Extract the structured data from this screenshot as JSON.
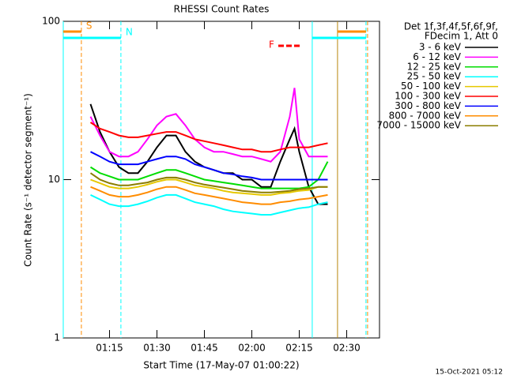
{
  "chart_data": {
    "type": "line",
    "title": "RHESSI Count Rates",
    "xlabel": "Start Time (17-May-07 01:00:22)",
    "ylabel": "Count Rate (s⁻¹ detector segment⁻¹)",
    "footer": "15-Oct-2021 05:12",
    "legend_header": [
      "Det 1f,3f,4f,5f,6f,9f,",
      "FDecim 1, Att 0"
    ],
    "log_y": true,
    "xlim": [
      0.37,
      100.37
    ],
    "ylim": [
      1,
      100
    ],
    "yticks": [
      1,
      10,
      100
    ],
    "xticks": [
      {
        "value": 15,
        "label": "01:15"
      },
      {
        "value": 30,
        "label": "01:30"
      },
      {
        "value": 45,
        "label": "01:45"
      },
      {
        "value": 60,
        "label": "02:00"
      },
      {
        "value": 75,
        "label": "02:15"
      },
      {
        "value": 90,
        "label": "02:30"
      }
    ],
    "x": [
      9,
      12,
      15,
      18,
      21,
      24,
      27,
      30,
      33,
      36,
      39,
      42,
      45,
      48,
      51,
      54,
      57,
      60,
      63,
      66,
      69,
      72,
      73.5,
      75,
      78,
      81,
      84
    ],
    "series": [
      {
        "name": "3 - 6 keV",
        "color": "#000000",
        "values": [
          30,
          20,
          15,
          12,
          11,
          11,
          13,
          16,
          19,
          19,
          15,
          13,
          12,
          11.5,
          11,
          11,
          10,
          10,
          9,
          9,
          13,
          18,
          21,
          15,
          9,
          7,
          7
        ]
      },
      {
        "name": "6 - 12 keV",
        "color": "#ff00ff",
        "values": [
          25,
          19,
          15,
          14,
          14,
          15,
          18,
          22,
          25,
          26,
          22,
          18,
          16,
          15,
          15,
          14.5,
          14,
          14,
          13.5,
          13,
          15,
          25,
          38,
          18,
          14,
          14,
          14
        ]
      },
      {
        "name": "12 - 25 keV",
        "color": "#00dd00",
        "values": [
          12,
          11,
          10.5,
          10,
          10,
          10,
          10.5,
          11,
          11.5,
          11.5,
          11,
          10.5,
          10,
          9.8,
          9.6,
          9.4,
          9.2,
          9,
          8.8,
          8.8,
          8.8,
          8.8,
          8.8,
          8.8,
          9,
          10,
          13
        ]
      },
      {
        "name": "25 - 50 keV",
        "color": "#00ffff",
        "values": [
          8,
          7.5,
          7,
          6.8,
          6.8,
          7,
          7.3,
          7.7,
          8,
          8,
          7.6,
          7.2,
          7,
          6.8,
          6.5,
          6.3,
          6.2,
          6.1,
          6,
          6,
          6.2,
          6.4,
          6.5,
          6.6,
          6.7,
          7,
          7.2
        ]
      },
      {
        "name": "50 - 100 keV",
        "color": "#e6c800",
        "values": [
          10,
          9.5,
          9,
          8.8,
          8.8,
          9,
          9.3,
          9.7,
          10,
          10,
          9.6,
          9.2,
          9,
          8.8,
          8.5,
          8.3,
          8.2,
          8.1,
          8,
          8,
          8.2,
          8.3,
          8.4,
          8.5,
          8.6,
          9,
          9
        ]
      },
      {
        "name": "100 - 300 keV",
        "color": "#ff0000",
        "values": [
          23,
          21,
          20,
          19,
          18.5,
          18.5,
          19,
          19.5,
          20,
          20,
          19,
          18,
          17.5,
          17,
          16.5,
          16,
          15.5,
          15.5,
          15,
          15,
          15.5,
          16,
          16,
          16,
          16,
          16.5,
          17
        ]
      },
      {
        "name": "300 - 800 keV",
        "color": "#0000ff",
        "values": [
          15,
          14,
          13,
          12.5,
          12.5,
          12.5,
          13,
          13.5,
          14,
          14,
          13.5,
          12.5,
          12,
          11.5,
          11,
          10.8,
          10.5,
          10.3,
          10,
          10,
          10,
          10,
          10,
          10,
          10,
          10,
          10
        ]
      },
      {
        "name": "800 - 7000 keV",
        "color": "#ff8c00",
        "values": [
          9,
          8.5,
          8,
          7.8,
          7.8,
          8,
          8.3,
          8.7,
          9,
          9,
          8.6,
          8.2,
          8,
          7.8,
          7.6,
          7.4,
          7.2,
          7.1,
          7,
          7,
          7.2,
          7.3,
          7.4,
          7.5,
          7.6,
          7.8,
          8
        ]
      },
      {
        "name": "7000 - 15000 keV",
        "color": "#8b7d00",
        "values": [
          11,
          10,
          9.5,
          9.2,
          9.2,
          9.4,
          9.6,
          10,
          10.3,
          10.3,
          10,
          9.6,
          9.3,
          9.1,
          8.9,
          8.7,
          8.5,
          8.4,
          8.3,
          8.3,
          8.4,
          8.5,
          8.6,
          8.7,
          8.8,
          9,
          9
        ]
      }
    ],
    "vlines": [
      {
        "x": 0.37,
        "color": "#00ffff",
        "dashed": false
      },
      {
        "x": 6.1,
        "color": "#ff8c00",
        "dashed": true
      },
      {
        "x": 18.6,
        "color": "#00ffff",
        "dashed": true
      },
      {
        "x": 79.1,
        "color": "#00ffff",
        "dashed": false
      },
      {
        "x": 87.1,
        "color": "#b8860b",
        "dashed": false
      },
      {
        "x": 96.1,
        "color": "#00ffff",
        "dashed": true
      },
      {
        "x": 96.6,
        "color": "#ff8c00",
        "dashed": true
      }
    ],
    "bars": [
      {
        "label": "S",
        "color": "#ff8c00",
        "x": [
          0.37,
          6.1
        ]
      },
      {
        "label": "N",
        "color": "#00ffff",
        "x": [
          0.37,
          18.6
        ]
      },
      {
        "color": "#00ffff",
        "x": [
          79.1,
          96.1
        ]
      },
      {
        "color": "#ff8c00",
        "x": [
          87.1,
          96.1
        ]
      }
    ],
    "flag": {
      "label": "F",
      "color": "#ff0000"
    }
  }
}
